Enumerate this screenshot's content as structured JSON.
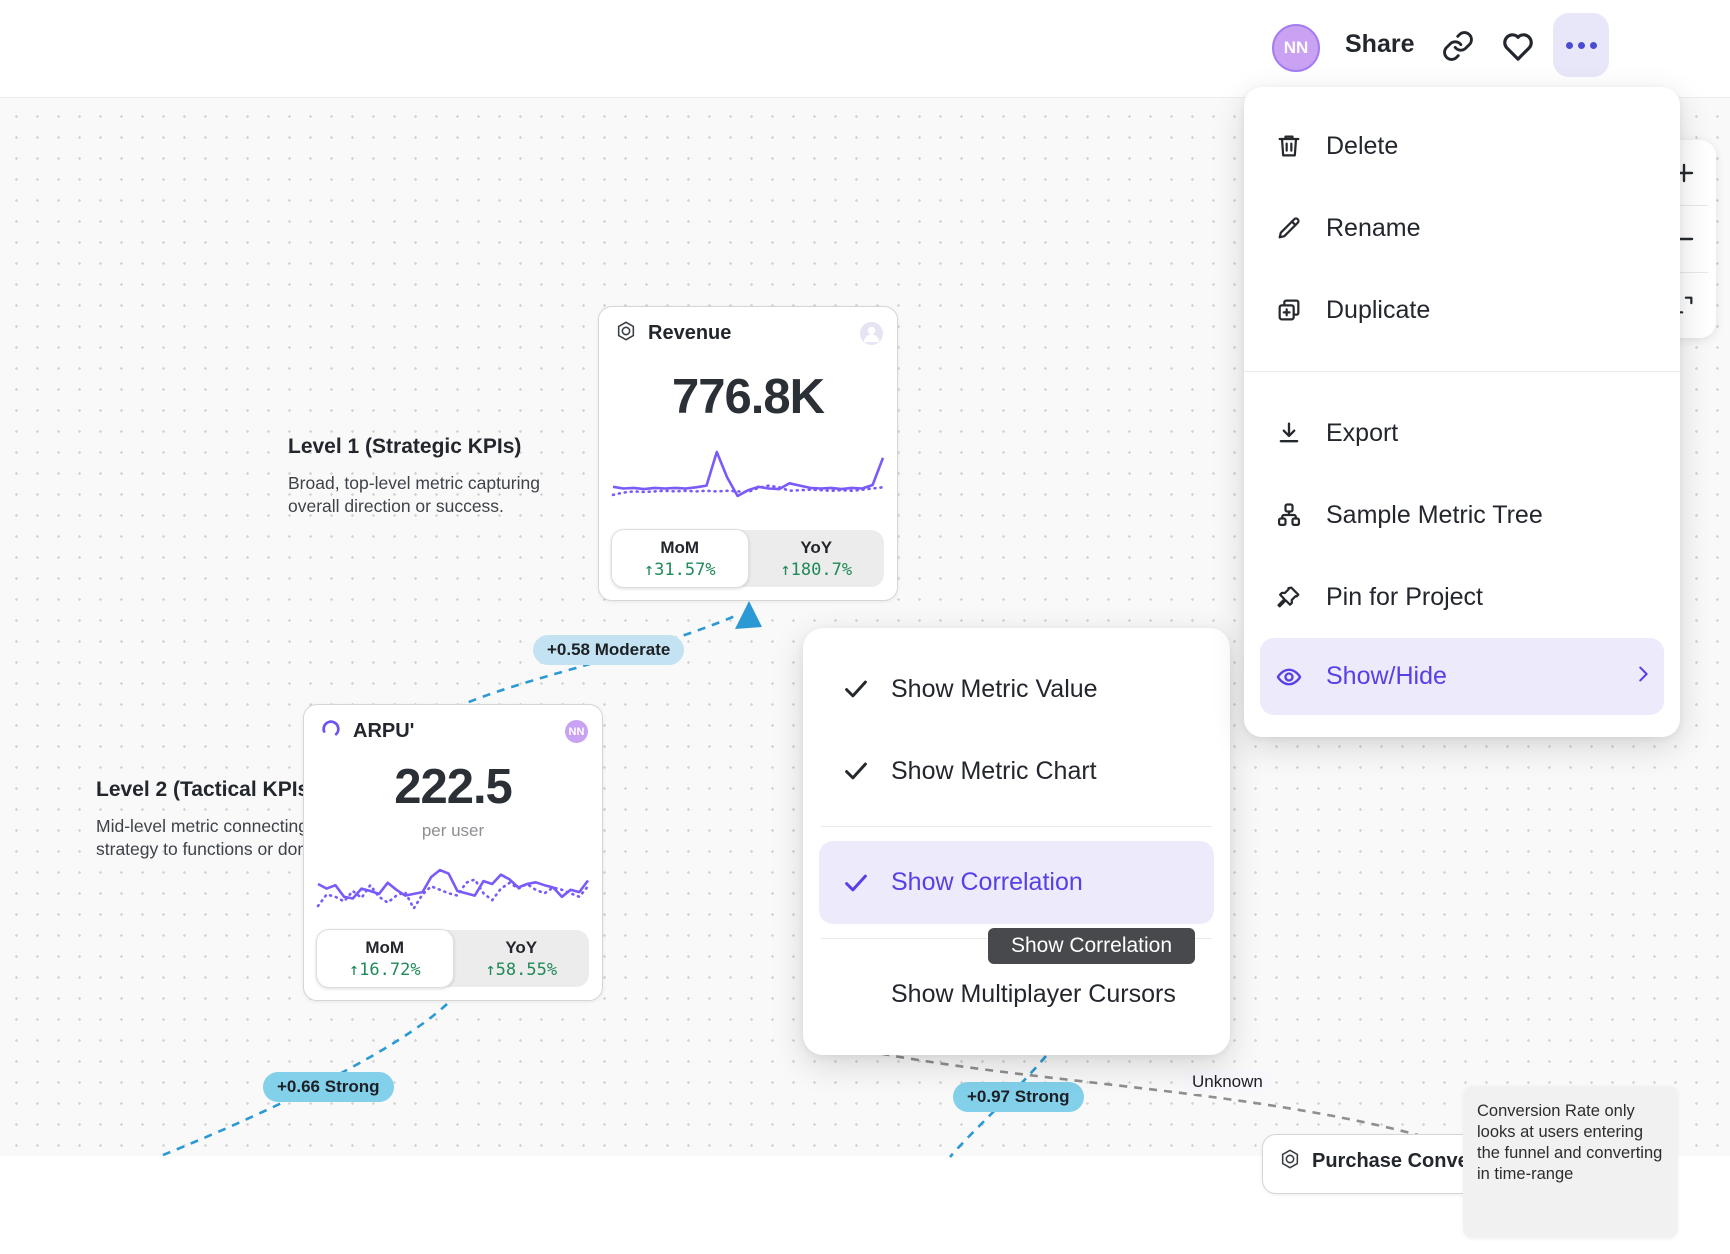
{
  "toolbar": {
    "avatar_initials": "NN",
    "share_label": "Share"
  },
  "context_menu": {
    "delete": "Delete",
    "rename": "Rename",
    "duplicate": "Duplicate",
    "export": "Export",
    "sample_metric_tree": "Sample Metric Tree",
    "pin_for_project": "Pin for Project",
    "show_hide": "Show/Hide"
  },
  "submenu": {
    "show_metric_value": "Show Metric Value",
    "show_metric_chart": "Show Metric Chart",
    "show_correlation": "Show Correlation",
    "show_multiplayer_cursors": "Show Multiplayer Cursors"
  },
  "tooltip": {
    "label": "Show Correlation"
  },
  "levels": {
    "level1": {
      "title": "Level 1 (Strategic KPIs)",
      "description": "Broad, top-level metric capturing overall direction or success."
    },
    "level2": {
      "title": "Level 2 (Tactical KPIs",
      "description_line1": "Mid-level metric connecting",
      "description_line2": "strategy to functions or doma"
    }
  },
  "cards": {
    "revenue": {
      "title": "Revenue",
      "value": "776.8K",
      "mom_label": "MoM",
      "mom_value": "↑31.57%",
      "yoy_label": "YoY",
      "yoy_value": "↑180.7%"
    },
    "arpu": {
      "title": "ARPU'",
      "value": "222.5",
      "unit": "per user",
      "owner_initials": "NN",
      "mom_label": "MoM",
      "mom_value": "↑16.72%",
      "yoy_label": "YoY",
      "yoy_value": "↑58.55%"
    },
    "purchase": {
      "title": "Purchase Conversion R"
    }
  },
  "badges": {
    "moderate": "+0.58 Moderate",
    "strong_66": "+0.66 Strong",
    "strong_97": "+0.97 Strong",
    "unknown": "Unknown"
  },
  "note_text": "Conversion Rate only looks at users entering the funnel and converting in time-range",
  "colors": {
    "accent_purple": "#5740e6",
    "highlight_bg": "#eceafb",
    "spark_purple": "#7a5af8",
    "positive_green": "#1f8a58",
    "edge_blue": "#2b99d3",
    "edge_gray": "#8f8f8f",
    "badge_moderate_bg": "#c3e3f3",
    "badge_strong_bg": "#82d0ea"
  },
  "sparklines": {
    "revenue": {
      "solid": [
        0.28,
        0.25,
        0.26,
        0.24,
        0.26,
        0.25,
        0.26,
        0.25,
        0.27,
        0.3,
        0.88,
        0.44,
        0.12,
        0.22,
        0.28,
        0.25,
        0.24,
        0.34,
        0.3,
        0.26,
        0.25,
        0.26,
        0.24,
        0.26,
        0.25,
        0.31,
        0.78
      ],
      "dotted": [
        0.14,
        0.18,
        0.2,
        0.19,
        0.2,
        0.21,
        0.2,
        0.21,
        0.2,
        0.21,
        0.2,
        0.21,
        0.2,
        0.19,
        0.26,
        0.3,
        0.27,
        0.21,
        0.22,
        0.23,
        0.22,
        0.21,
        0.22,
        0.21,
        0.23,
        0.25,
        0.27
      ]
    },
    "arpu": {
      "solid": [
        0.5,
        0.42,
        0.48,
        0.28,
        0.25,
        0.42,
        0.38,
        0.33,
        0.52,
        0.4,
        0.3,
        0.33,
        0.36,
        0.62,
        0.74,
        0.68,
        0.38,
        0.34,
        0.3,
        0.55,
        0.5,
        0.66,
        0.58,
        0.44,
        0.5,
        0.53,
        0.48,
        0.44,
        0.28,
        0.4,
        0.36,
        0.56
      ],
      "dotted": [
        0.12,
        0.32,
        0.28,
        0.2,
        0.38,
        0.26,
        0.48,
        0.28,
        0.18,
        0.3,
        0.36,
        0.08,
        0.32,
        0.46,
        0.4,
        0.34,
        0.3,
        0.52,
        0.58,
        0.34,
        0.22,
        0.42,
        0.52,
        0.42,
        0.5,
        0.4,
        0.34,
        0.44,
        0.4,
        0.34,
        0.28,
        0.46
      ]
    }
  }
}
